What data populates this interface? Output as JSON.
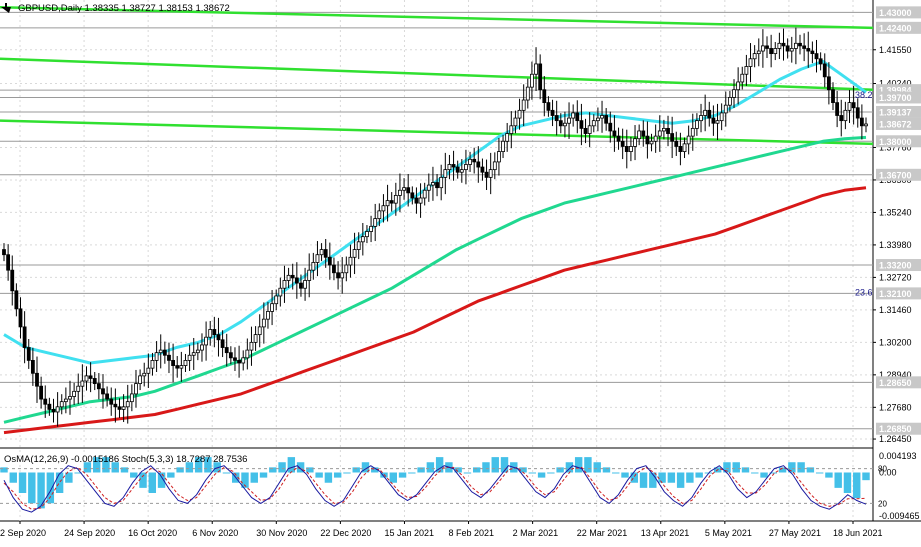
{
  "header": {
    "symbol_line": "GBPUSD,Daily  1.38335 1.38727 1.38153 1.38672"
  },
  "indicator_header": {
    "label": "OsMA(12,26,9) -0.0015186  Stoch(5,3,3) 18.7287 28.7536"
  },
  "colors": {
    "background": "#ffffff",
    "grid": "#d9d9d9",
    "candle": "#000000",
    "ema_fast": "#40e0f0",
    "ema_mid": "#20d890",
    "ema_slow": "#d81818",
    "channel": "#30e030",
    "osma_hist": "#44c0e8",
    "stoch_main": "#1a1aa0",
    "stoch_signal": "#d02020",
    "label_box": "#c8c8c8"
  },
  "chart_data": [
    {
      "type": "candlestick",
      "title": "GBPUSD,Daily",
      "ohlc_last": {
        "open": 1.38335,
        "high": 1.38727,
        "low": 1.38153,
        "close": 1.38672
      },
      "x_tick_labels": [
        "2 Sep 2020",
        "24 Sep 2020",
        "16 Oct 2020",
        "6 Nov 2020",
        "30 Nov 2020",
        "22 Dec 2020",
        "15 Jan 2021",
        "8 Feb 2021",
        "2 Mar 2021",
        "22 Mar 2021",
        "13 Apr 2021",
        "5 May 2021",
        "27 May 2021",
        "18 Jun 2021"
      ],
      "y_tick_labels": [
        "1.41550",
        "1.40240",
        "1.37760",
        "1.36500",
        "1.35240",
        "1.33980",
        "1.32720",
        "1.31460",
        "1.30200",
        "1.28940",
        "1.27680",
        "1.26450"
      ],
      "ylim": [
        1.2618,
        1.4348
      ],
      "price_levels": [
        "1.43000",
        "1.42400",
        "1.39984",
        "1.39700",
        "1.39137",
        "1.38672",
        "1.38000",
        "1.36700",
        "1.33200",
        "1.32100",
        "1.28650",
        "1.26850"
      ],
      "fib_labels": [
        "38.2",
        "23.6"
      ],
      "close_series": [
        1.336,
        1.33,
        1.322,
        1.315,
        1.308,
        1.3,
        1.295,
        1.29,
        1.285,
        1.28,
        1.278,
        1.276,
        1.275,
        1.277,
        1.279,
        1.28,
        1.281,
        1.283,
        1.285,
        1.287,
        1.289,
        1.288,
        1.286,
        1.284,
        1.282,
        1.28,
        1.278,
        1.277,
        1.276,
        1.277,
        1.279,
        1.282,
        1.286,
        1.289,
        1.29,
        1.292,
        1.295,
        1.298,
        1.299,
        1.297,
        1.295,
        1.293,
        1.292,
        1.293,
        1.295,
        1.297,
        1.298,
        1.299,
        1.301,
        1.304,
        1.307,
        1.305,
        1.303,
        1.3,
        1.298,
        1.296,
        1.295,
        1.294,
        1.296,
        1.299,
        1.302,
        1.305,
        1.308,
        1.311,
        1.314,
        1.317,
        1.32,
        1.323,
        1.326,
        1.328,
        1.327,
        1.325,
        1.323,
        1.326,
        1.33,
        1.333,
        1.336,
        1.338,
        1.335,
        1.332,
        1.329,
        1.327,
        1.329,
        1.332,
        1.335,
        1.338,
        1.341,
        1.343,
        1.345,
        1.347,
        1.35,
        1.353,
        1.355,
        1.357,
        1.356,
        1.359,
        1.361,
        1.362,
        1.36,
        1.358,
        1.356,
        1.358,
        1.361,
        1.363,
        1.364,
        1.362,
        1.366,
        1.369,
        1.371,
        1.37,
        1.368,
        1.369,
        1.371,
        1.373,
        1.372,
        1.37,
        1.368,
        1.366,
        1.369,
        1.372,
        1.376,
        1.38,
        1.383,
        1.386,
        1.389,
        1.392,
        1.396,
        1.401,
        1.406,
        1.41,
        1.4,
        1.395,
        1.392,
        1.39,
        1.388,
        1.386,
        1.387,
        1.389,
        1.391,
        1.388,
        1.385,
        1.383,
        1.386,
        1.388,
        1.389,
        1.39,
        1.387,
        1.384,
        1.382,
        1.38,
        1.378,
        1.376,
        1.378,
        1.381,
        1.384,
        1.382,
        1.379,
        1.38,
        1.382,
        1.384,
        1.385,
        1.383,
        1.38,
        1.378,
        1.376,
        1.379,
        1.382,
        1.385,
        1.388,
        1.39,
        1.392,
        1.389,
        1.387,
        1.388,
        1.391,
        1.394,
        1.397,
        1.4,
        1.403,
        1.406,
        1.409,
        1.412,
        1.414,
        1.415,
        1.417,
        1.416,
        1.414,
        1.416,
        1.418,
        1.417,
        1.415,
        1.416,
        1.418,
        1.417,
        1.416,
        1.415,
        1.414,
        1.412,
        1.41,
        1.405,
        1.4,
        1.395,
        1.39,
        1.388,
        1.392,
        1.395,
        1.393,
        1.389,
        1.386,
        1.3867
      ],
      "series": [
        {
          "name": "",
          "style": "ema_fast",
          "values": [
            1.305,
            1.3,
            1.298,
            1.296,
            1.294,
            1.295,
            1.296,
            1.297,
            1.3,
            1.302,
            1.305,
            1.31,
            1.316,
            1.322,
            1.328,
            1.334,
            1.34,
            1.346,
            1.352,
            1.358,
            1.364,
            1.37,
            1.376,
            1.382,
            1.386,
            1.388,
            1.39,
            1.391,
            1.39,
            1.389,
            1.388,
            1.387,
            1.388,
            1.39,
            1.394,
            1.399,
            1.404,
            1.408,
            1.411,
            1.405,
            1.399
          ]
        },
        {
          "name": "",
          "style": "ema_mid",
          "values": [
            1.271,
            1.273,
            1.275,
            1.277,
            1.279,
            1.28,
            1.281,
            1.283,
            1.286,
            1.289,
            1.292,
            1.295,
            1.299,
            1.303,
            1.307,
            1.311,
            1.315,
            1.319,
            1.323,
            1.328,
            1.333,
            1.338,
            1.342,
            1.346,
            1.35,
            1.353,
            1.356,
            1.358,
            1.36,
            1.362,
            1.364,
            1.366,
            1.368,
            1.37,
            1.372,
            1.374,
            1.376,
            1.378,
            1.38,
            1.381,
            1.3815
          ]
        },
        {
          "name": "",
          "style": "ema_slow",
          "values": [
            1.267,
            1.268,
            1.269,
            1.27,
            1.271,
            1.272,
            1.273,
            1.274,
            1.276,
            1.278,
            1.28,
            1.282,
            1.285,
            1.288,
            1.291,
            1.294,
            1.297,
            1.3,
            1.303,
            1.306,
            1.31,
            1.314,
            1.318,
            1.321,
            1.324,
            1.327,
            1.33,
            1.332,
            1.334,
            1.336,
            1.338,
            1.34,
            1.342,
            1.344,
            1.347,
            1.35,
            1.353,
            1.356,
            1.359,
            1.361,
            1.362
          ]
        }
      ],
      "channel_lines": [
        {
          "y_start": 1.432,
          "y_end": 1.424
        },
        {
          "y_start": 1.412,
          "y_end": 1.4
        },
        {
          "y_start": 1.388,
          "y_end": 1.379
        }
      ],
      "horizontal_levels": [
        1.43,
        1.424,
        1.39984,
        1.397,
        1.39137,
        1.38,
        1.367,
        1.332,
        1.321,
        1.2865,
        1.2685
      ]
    },
    {
      "type": "oscillator",
      "title": "OsMA(12,26,9) -0.0015186  Stoch(5,3,3) 18.7287 28.7536",
      "y_tick_labels": [
        "0.004193",
        "0.00",
        "-0.009465"
      ],
      "stoch_levels": [
        "80",
        "20"
      ],
      "ylim": [
        -0.009465,
        0.004193
      ],
      "osma": [
        0.001,
        -0.002,
        -0.004,
        -0.006,
        -0.007,
        -0.006,
        -0.004,
        -0.002,
        0.0,
        0.002,
        0.003,
        0.003,
        0.002,
        0.001,
        -0.001,
        -0.003,
        -0.004,
        -0.003,
        -0.001,
        0.001,
        0.002,
        0.003,
        0.003,
        0.002,
        0.0,
        -0.002,
        -0.003,
        -0.002,
        -0.001,
        0.001,
        0.002,
        0.003,
        0.002,
        0.001,
        -0.001,
        -0.002,
        -0.001,
        0.0,
        0.001,
        0.002,
        0.001,
        -0.001,
        -0.002,
        -0.001,
        0.0,
        0.001,
        0.002,
        0.003,
        0.002,
        0.001,
        0.0,
        0.001,
        0.002,
        0.003,
        0.003,
        0.002,
        0.001,
        0.0,
        -0.001,
        0.0,
        0.001,
        0.002,
        0.003,
        0.003,
        0.002,
        0.001,
        0.0,
        -0.001,
        -0.002,
        -0.003,
        -0.003,
        -0.002,
        -0.002,
        -0.003,
        -0.002,
        -0.001,
        0.0,
        0.001,
        0.002,
        0.002,
        0.001,
        0.0,
        -0.001,
        0.0,
        0.001,
        0.002,
        0.002,
        0.001,
        0.0,
        -0.001,
        -0.003,
        -0.004,
        -0.005,
        -0.0015
      ],
      "stoch_main": [
        60,
        30,
        10,
        5,
        15,
        40,
        70,
        85,
        80,
        60,
        40,
        20,
        15,
        30,
        55,
        75,
        85,
        70,
        45,
        25,
        20,
        35,
        60,
        80,
        85,
        70,
        50,
        30,
        20,
        30,
        55,
        80,
        85,
        70,
        45,
        25,
        15,
        25,
        50,
        75,
        85,
        75,
        55,
        35,
        25,
        35,
        55,
        75,
        85,
        80,
        60,
        40,
        30,
        45,
        65,
        85,
        80,
        60,
        40,
        30,
        45,
        70,
        85,
        80,
        55,
        30,
        20,
        35,
        60,
        80,
        85,
        65,
        40,
        25,
        15,
        30,
        55,
        75,
        85,
        70,
        45,
        30,
        40,
        60,
        80,
        85,
        70,
        45,
        25,
        15,
        10,
        20,
        35,
        25,
        18.7
      ],
      "stoch_signal": [
        55,
        40,
        20,
        10,
        12,
        30,
        55,
        75,
        82,
        70,
        50,
        30,
        20,
        25,
        45,
        65,
        80,
        75,
        55,
        35,
        25,
        30,
        50,
        70,
        82,
        75,
        55,
        40,
        25,
        28,
        45,
        70,
        82,
        75,
        55,
        35,
        20,
        22,
        40,
        65,
        80,
        78,
        60,
        42,
        30,
        32,
        48,
        68,
        82,
        82,
        68,
        48,
        35,
        40,
        58,
        78,
        82,
        68,
        48,
        35,
        40,
        60,
        80,
        82,
        62,
        40,
        25,
        30,
        50,
        72,
        82,
        72,
        50,
        32,
        20,
        25,
        45,
        68,
        80,
        75,
        55,
        38,
        38,
        52,
        72,
        82,
        75,
        55,
        35,
        20,
        15,
        18,
        28,
        28,
        28.75
      ]
    }
  ]
}
